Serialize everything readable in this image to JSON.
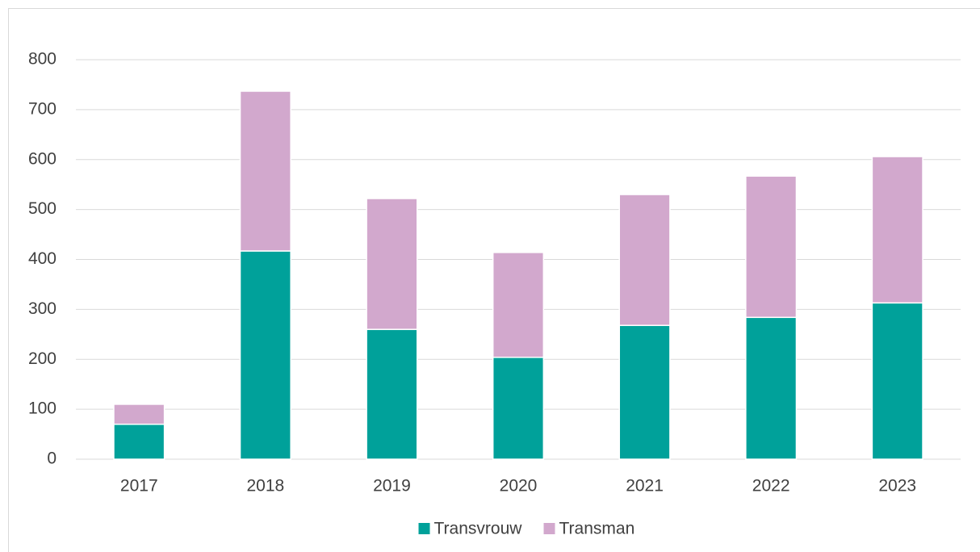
{
  "chart_data": {
    "type": "stacked_bar",
    "categories": [
      "2017",
      "2018",
      "2019",
      "2020",
      "2021",
      "2022",
      "2023"
    ],
    "series": [
      {
        "name": "Transvrouw",
        "color": "#00a19a",
        "values": [
          70,
          417,
          260,
          204,
          268,
          284,
          313
        ]
      },
      {
        "name": "Transman",
        "color": "#d2a8cd",
        "values": [
          40,
          320,
          262,
          210,
          262,
          283,
          293
        ]
      }
    ],
    "ylim": [
      0,
      800
    ],
    "yticks": [
      0,
      100,
      200,
      300,
      400,
      500,
      600,
      700,
      800
    ],
    "grid": true,
    "legend": "bottom"
  }
}
